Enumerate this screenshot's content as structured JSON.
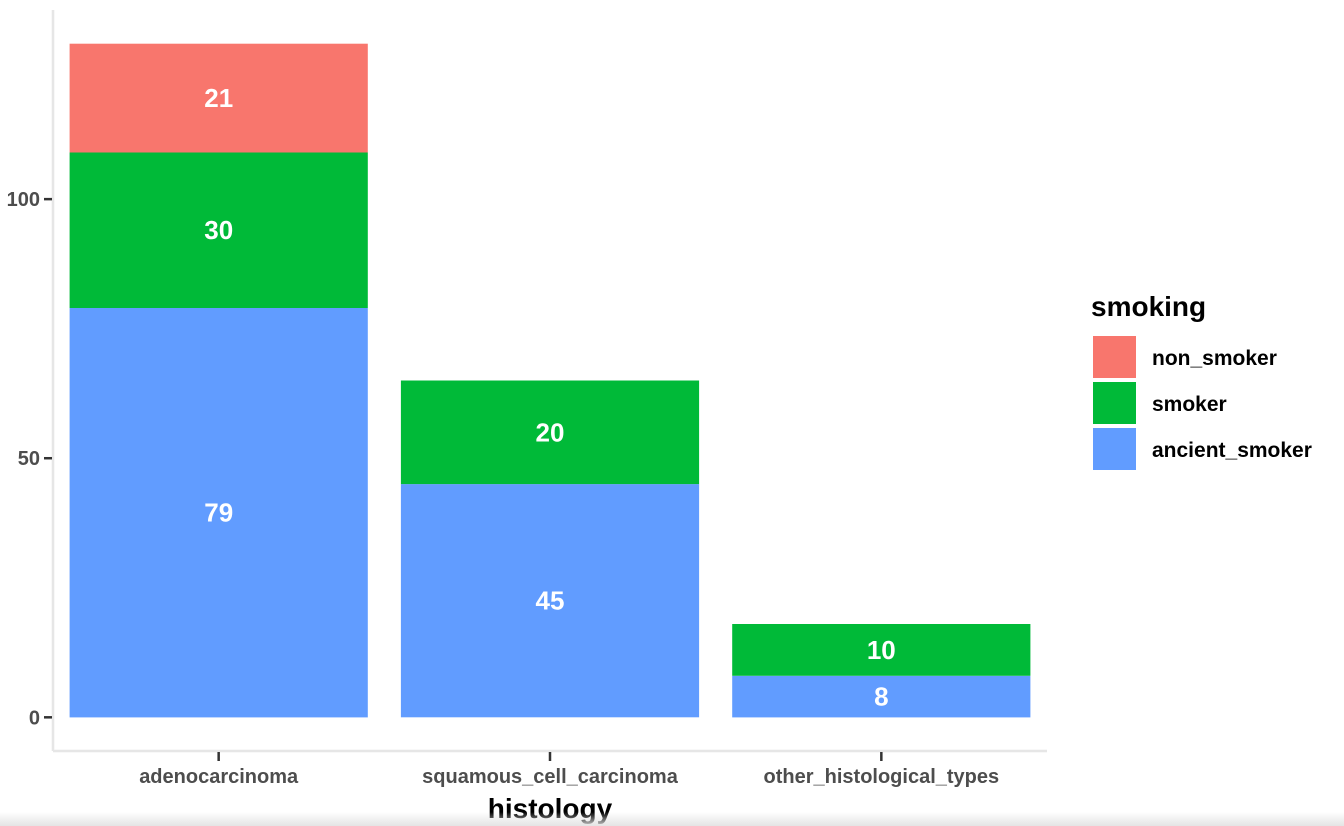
{
  "chart_data": {
    "type": "bar",
    "stacked": true,
    "categories": [
      "adenocarcinoma",
      "squamous_cell_carcinoma",
      "other_histological_types"
    ],
    "series": [
      {
        "name": "ancient_smoker",
        "color": "#619CFF",
        "values": [
          79,
          45,
          8
        ]
      },
      {
        "name": "smoker",
        "color": "#00BA38",
        "values": [
          30,
          20,
          10
        ]
      },
      {
        "name": "non_smoker",
        "color": "#F8766D",
        "values": [
          21,
          0,
          0
        ]
      }
    ],
    "xlabel": "histology",
    "ylabel": "",
    "ylim": [
      -6.5,
      136.5
    ],
    "yticks": [
      0,
      50,
      100
    ],
    "grid": false,
    "legend": {
      "title": "smoking",
      "position": "right",
      "order": [
        "non_smoker",
        "smoker",
        "ancient_smoker"
      ]
    }
  }
}
